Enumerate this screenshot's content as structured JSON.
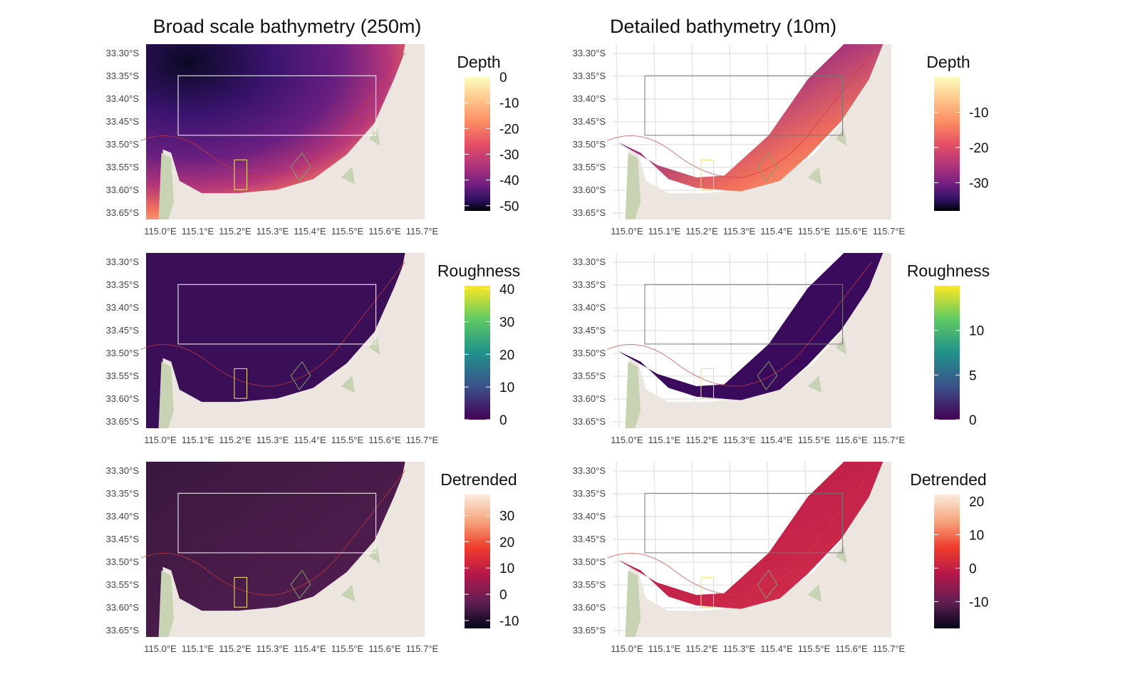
{
  "figure": {
    "columns": [
      {
        "title": "Broad scale bathymetry (250m)"
      },
      {
        "title": "Detailed bathymetry (10m)"
      }
    ],
    "axes": {
      "lat_labels": [
        "33.30°S",
        "33.35°S",
        "33.40°S",
        "33.45°S",
        "33.50°S",
        "33.55°S",
        "33.60°S",
        "33.65°S"
      ],
      "lon_labels": [
        "115.0°E",
        "115.1°E",
        "115.2°E",
        "115.3°E",
        "115.4°E",
        "115.5°E",
        "115.6°E",
        "115.7°E"
      ],
      "lat_values": [
        -33.3,
        -33.35,
        -33.4,
        -33.45,
        -33.5,
        -33.55,
        -33.6,
        -33.65
      ],
      "lon_values": [
        115.0,
        115.1,
        115.2,
        115.3,
        115.4,
        115.5,
        115.6,
        115.7
      ]
    },
    "colors": {
      "land": "#ede6e0",
      "vegetation": "#c8d3b4",
      "study_box": "#ffffff",
      "yellow_box": "#f2e07a",
      "green_box": "#7f9f6a",
      "contour": "#d23a3a",
      "grid": "#e6e6e6"
    },
    "panels": [
      {
        "id": "broad-depth",
        "legend": {
          "title": "Depth",
          "ticks": [
            "0",
            "-10",
            "-20",
            "-30",
            "-40",
            "-50"
          ],
          "tick_values": [
            0,
            -10,
            -20,
            -30,
            -40,
            -50
          ],
          "range": [
            0,
            -52
          ],
          "palette": "magma"
        }
      },
      {
        "id": "detailed-depth",
        "legend": {
          "title": "Depth",
          "ticks": [
            "-10",
            "-20",
            "-30"
          ],
          "tick_values": [
            -10,
            -20,
            -30
          ],
          "range": [
            0,
            -38
          ],
          "palette": "magma"
        }
      },
      {
        "id": "broad-roughness",
        "legend": {
          "title": "Roughness",
          "ticks": [
            "40",
            "30",
            "20",
            "10",
            "0"
          ],
          "tick_values": [
            40,
            30,
            20,
            10,
            0
          ],
          "range": [
            41,
            0
          ],
          "palette": "viridis"
        }
      },
      {
        "id": "detailed-roughness",
        "legend": {
          "title": "Roughness",
          "ticks": [
            "10",
            "5",
            "0"
          ],
          "tick_values": [
            10,
            5,
            0
          ],
          "range": [
            15,
            0
          ],
          "palette": "viridis"
        }
      },
      {
        "id": "broad-detrended",
        "legend": {
          "title": "Detrended",
          "ticks": [
            "30",
            "20",
            "10",
            "0",
            "-10"
          ],
          "tick_values": [
            30,
            20,
            10,
            0,
            -10
          ],
          "range": [
            38,
            -13
          ],
          "palette": "rocket"
        }
      },
      {
        "id": "detailed-detrended",
        "legend": {
          "title": "Detrended",
          "ticks": [
            "20",
            "10",
            "0",
            "-10"
          ],
          "tick_values": [
            20,
            10,
            0,
            -10
          ],
          "range": [
            22,
            -18
          ],
          "palette": "rocket"
        }
      }
    ]
  }
}
